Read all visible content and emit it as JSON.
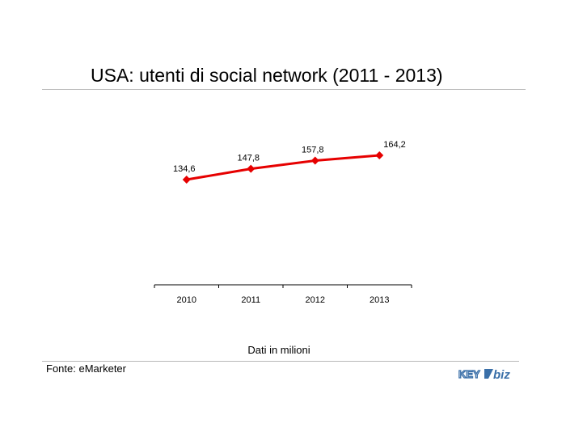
{
  "title": "USA: utenti di social network (2011 - 2013)",
  "note": "Dati in milioni",
  "source": "Fonte: eMarketer",
  "logo": {
    "text_left": "KEY",
    "text_right": "biz"
  },
  "colors": {
    "series": "#e60000",
    "rule": "#b8b8b8"
  },
  "chart_data": {
    "type": "line",
    "title": "USA: utenti di social network (2011 - 2013)",
    "categories": [
      "2010",
      "2011",
      "2012",
      "2013"
    ],
    "series": [
      {
        "values": [
          134.6,
          147.8,
          157.8,
          164.2
        ],
        "labels": [
          "134,6",
          "147,8",
          "157,8",
          "164,2"
        ]
      }
    ],
    "xlabel": "",
    "ylabel": "",
    "grid": false,
    "legend": "none",
    "y_axis_visible": false
  }
}
